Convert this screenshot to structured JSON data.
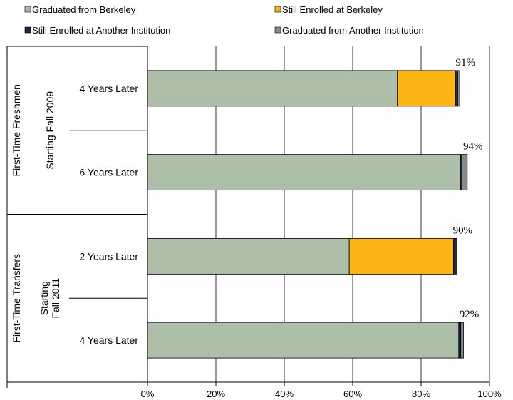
{
  "chart_data": {
    "type": "bar",
    "orientation": "horizontal",
    "stacked": true,
    "xlim": [
      0,
      100
    ],
    "x_ticks": [
      "0%",
      "20%",
      "40%",
      "60%",
      "80%",
      "100%"
    ],
    "grid": true,
    "legend_position": "top",
    "groups": [
      {
        "label": "First-Time Freshmen",
        "sublabel": "Starting Fall 2009",
        "sublabel_lines": [
          "Starting Fall 2009"
        ]
      },
      {
        "label": "First-Time  Transfers",
        "sublabel": "Starting Fall 2011",
        "sublabel_lines": [
          "Starting",
          "Fall 2011"
        ]
      }
    ],
    "categories": [
      "4 Years Later",
      "6 Years Later",
      "2 Years Later",
      "4 Years Later"
    ],
    "category_group": [
      0,
      0,
      1,
      1
    ],
    "series": [
      {
        "name": "Graduated from Berkeley",
        "color": "#adbfa9",
        "values": [
          73,
          91.5,
          59,
          91
        ]
      },
      {
        "name": "Still Enrolled at Berkeley",
        "color": "#fdb515",
        "values": [
          17,
          0,
          30.5,
          0
        ]
      },
      {
        "name": "Still Enrolled at Another Institution",
        "color": "#1f2a3c",
        "values": [
          0.7,
          0.5,
          1.0,
          0.6
        ]
      },
      {
        "name": "Graduated from Another Institution",
        "color": "#8a8a8a",
        "values": [
          0.6,
          1.5,
          0,
          0.8
        ]
      }
    ],
    "totals": [
      "91%",
      "94%",
      "90%",
      "92%"
    ]
  }
}
